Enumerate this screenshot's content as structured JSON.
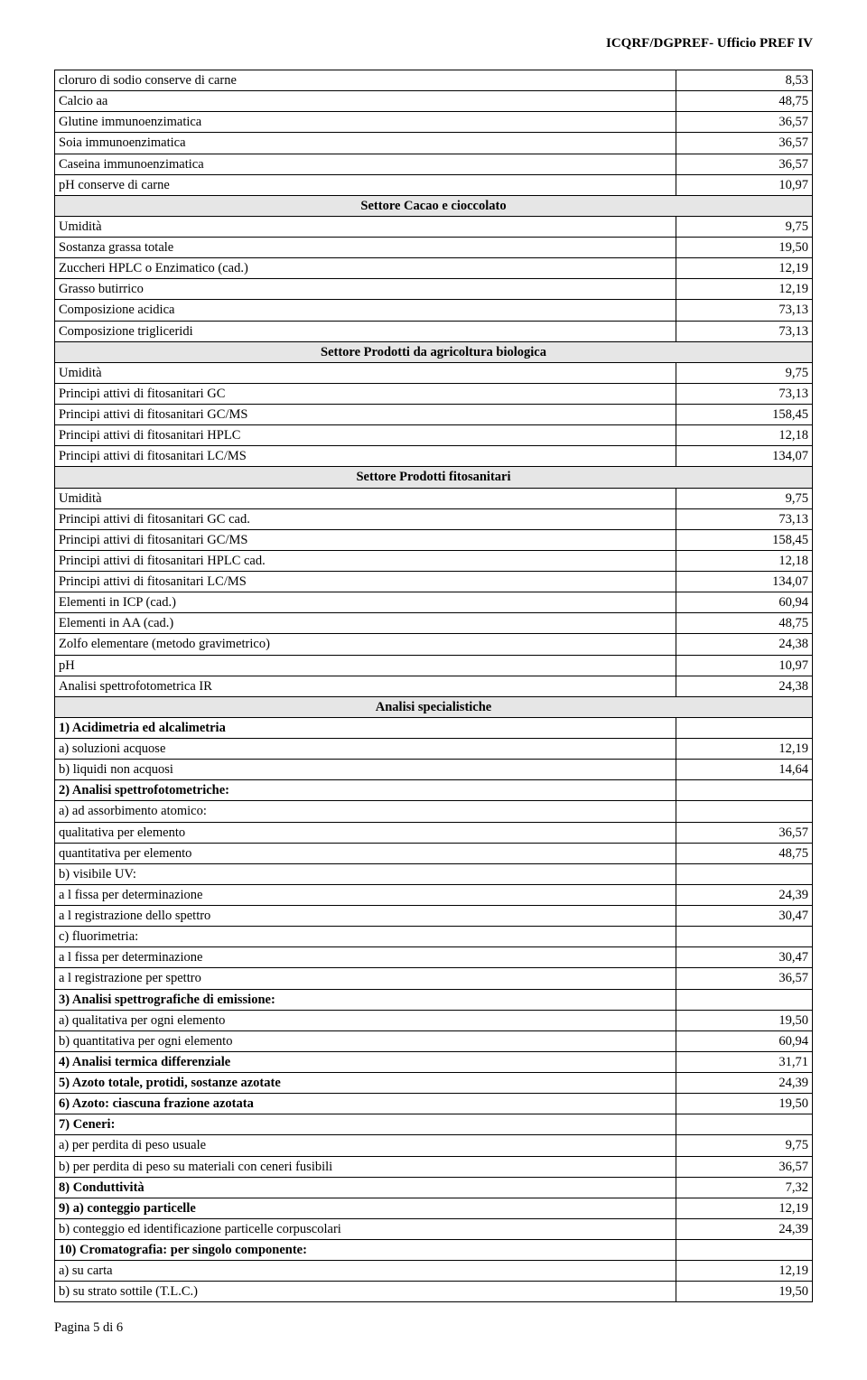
{
  "header": "ICQRF/DGPREF- Ufficio PREF IV",
  "footer": "Pagina 5 di 6",
  "rows": [
    {
      "label": "cloruro di sodio conserve di carne",
      "value": "8,53"
    },
    {
      "label": "Calcio aa",
      "value": "48,75"
    },
    {
      "label": "Glutine immunoenzimatica",
      "value": "36,57"
    },
    {
      "label": "Soia immunoenzimatica",
      "value": "36,57"
    },
    {
      "label": "Caseina immunoenzimatica",
      "value": "36,57"
    },
    {
      "label": "pH conserve di carne",
      "value": "10,97"
    },
    {
      "section": "Settore Cacao e cioccolato"
    },
    {
      "label": "Umidità",
      "value": "9,75"
    },
    {
      "label": "Sostanza grassa totale",
      "value": "19,50"
    },
    {
      "label": "Zuccheri HPLC o Enzimatico (cad.)",
      "value": "12,19"
    },
    {
      "label": "Grasso butirrico",
      "value": "12,19"
    },
    {
      "label": "Composizione acidica",
      "value": "73,13"
    },
    {
      "label": "Composizione trigliceridi",
      "value": "73,13"
    },
    {
      "section": "Settore Prodotti da agricoltura biologica"
    },
    {
      "label": "Umidità",
      "value": "9,75"
    },
    {
      "label": "Principi attivi di fitosanitari GC",
      "value": "73,13"
    },
    {
      "label": "Principi attivi di fitosanitari GC/MS",
      "value": "158,45"
    },
    {
      "label": "Principi attivi di fitosanitari HPLC",
      "value": "12,18"
    },
    {
      "label": "Principi attivi di fitosanitari LC/MS",
      "value": "134,07"
    },
    {
      "section": "Settore Prodotti fitosanitari"
    },
    {
      "label": "Umidità",
      "value": "9,75"
    },
    {
      "label": "Principi attivi di fitosanitari GC cad.",
      "value": "73,13"
    },
    {
      "label": "Principi attivi di fitosanitari GC/MS",
      "value": "158,45"
    },
    {
      "label": "Principi attivi di fitosanitari HPLC cad.",
      "value": "12,18"
    },
    {
      "label": "Principi attivi di fitosanitari LC/MS",
      "value": "134,07"
    },
    {
      "label": "Elementi in ICP (cad.)",
      "value": "60,94"
    },
    {
      "label": "Elementi in AA (cad.)",
      "value": "48,75"
    },
    {
      "label": "Zolfo elementare (metodo gravimetrico)",
      "value": "24,38"
    },
    {
      "label": "pH",
      "value": "10,97"
    },
    {
      "label": "Analisi spettrofotometrica IR",
      "value": "24,38"
    },
    {
      "section": "Analisi specialistiche"
    },
    {
      "label": "1) Acidimetria ed alcalimetria",
      "value": "",
      "bold": true
    },
    {
      "label": "a) soluzioni acquose",
      "value": "12,19"
    },
    {
      "label": "b) liquidi non acquosi",
      "value": "14,64"
    },
    {
      "label": "2) Analisi spettrofotometriche:",
      "value": "",
      "bold": true
    },
    {
      "label": "a) ad assorbimento atomico:",
      "value": ""
    },
    {
      "label": "qualitativa per elemento",
      "value": "36,57"
    },
    {
      "label": "quantitativa per elemento",
      "value": "48,75"
    },
    {
      "label": "b) visibile UV:",
      "value": ""
    },
    {
      "label": "a l fissa per determinazione",
      "value": "24,39"
    },
    {
      "label": "a l registrazione dello spettro",
      "value": "30,47"
    },
    {
      "label": "c) fluorimetria:",
      "value": ""
    },
    {
      "label": "a l fissa per determinazione",
      "value": "30,47"
    },
    {
      "label": "a l registrazione per spettro",
      "value": "36,57"
    },
    {
      "label": "3) Analisi spettrografiche di emissione:",
      "value": "",
      "bold": true
    },
    {
      "label": "a) qualitativa per ogni elemento",
      "value": "19,50"
    },
    {
      "label": "b) quantitativa per ogni elemento",
      "value": "60,94"
    },
    {
      "label": "4) Analisi termica differenziale",
      "value": "31,71",
      "bold": true
    },
    {
      "label": "5) Azoto totale, protidi, sostanze azotate",
      "value": "24,39",
      "bold": true
    },
    {
      "label": "6) Azoto: ciascuna frazione azotata",
      "value": "19,50",
      "bold": true
    },
    {
      "label": "7) Ceneri:",
      "value": "",
      "bold": true
    },
    {
      "label": "a) per perdita di peso usuale",
      "value": "9,75"
    },
    {
      "label": "b) per perdita di peso su materiali con ceneri fusibili",
      "value": "36,57"
    },
    {
      "label": "8) Conduttività",
      "value": "7,32",
      "bold": true
    },
    {
      "label": "9) a) conteggio particelle",
      "value": "12,19",
      "bold": true
    },
    {
      "label": "b) conteggio ed identificazione particelle corpuscolari",
      "value": "24,39"
    },
    {
      "label": "10) Cromatografia: per singolo componente:",
      "value": "",
      "bold": true
    },
    {
      "label": "a) su carta",
      "value": "12,19"
    },
    {
      "label": "b) su strato sottile (T.L.C.)",
      "value": "19,50"
    }
  ]
}
